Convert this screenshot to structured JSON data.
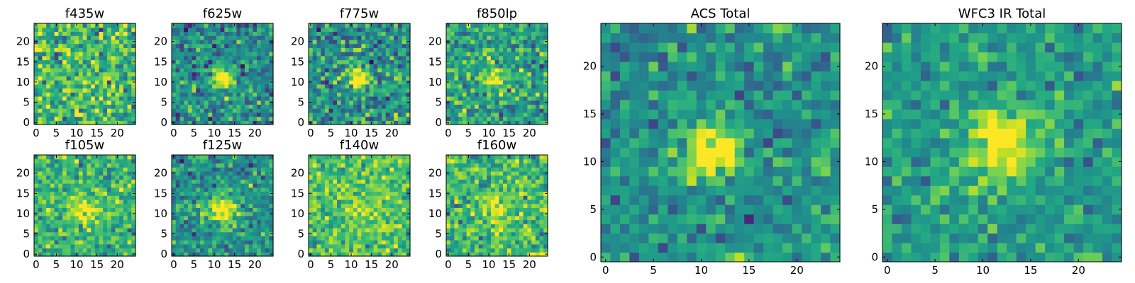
{
  "chart_data": [
    {
      "type": "heatmap",
      "title": "f435w",
      "xticks": [
        "0",
        "5",
        "10",
        "15",
        "20"
      ],
      "yticks": [
        "0",
        "5",
        "10",
        "15",
        "20"
      ],
      "grid": "off",
      "colormap": "viridis",
      "size": 25,
      "peak": 0.1,
      "source_center": [
        12,
        11
      ],
      "source_radius": 2.2,
      "background_mean": 0.68,
      "noise": 0.18,
      "seed": 11
    },
    {
      "type": "heatmap",
      "title": "f625w",
      "xticks": [
        "0",
        "5",
        "10",
        "15",
        "20"
      ],
      "yticks": [
        "0",
        "5",
        "10",
        "15",
        "20"
      ],
      "grid": "off",
      "colormap": "viridis",
      "size": 25,
      "peak": 0.6,
      "source_center": [
        12,
        11
      ],
      "source_radius": 1.9,
      "background_mean": 0.48,
      "noise": 0.15,
      "seed": 23
    },
    {
      "type": "heatmap",
      "title": "f775w",
      "xticks": [
        "0",
        "5",
        "10",
        "15",
        "20"
      ],
      "yticks": [
        "0",
        "5",
        "10",
        "15",
        "20"
      ],
      "grid": "off",
      "colormap": "viridis",
      "size": 25,
      "peak": 0.5,
      "source_center": [
        12,
        11
      ],
      "source_radius": 1.9,
      "background_mean": 0.52,
      "noise": 0.17,
      "seed": 37
    },
    {
      "type": "heatmap",
      "title": "f850lp",
      "xticks": [
        "0",
        "5",
        "10",
        "15",
        "20"
      ],
      "yticks": [
        "0",
        "5",
        "10",
        "15",
        "20"
      ],
      "grid": "off",
      "colormap": "viridis",
      "size": 25,
      "peak": 0.45,
      "source_center": [
        12,
        11
      ],
      "source_radius": 1.9,
      "background_mean": 0.58,
      "noise": 0.16,
      "seed": 41
    },
    {
      "type": "heatmap",
      "title": "f105w",
      "xticks": [
        "0",
        "5",
        "10",
        "15",
        "20"
      ],
      "yticks": [
        "0",
        "5",
        "10",
        "15",
        "20"
      ],
      "grid": "off",
      "colormap": "viridis",
      "size": 25,
      "peak": 0.35,
      "source_center": [
        12,
        11
      ],
      "source_radius": 2.4,
      "background_mean": 0.66,
      "noise": 0.14,
      "seed": 53
    },
    {
      "type": "heatmap",
      "title": "f125w",
      "xticks": [
        "0",
        "5",
        "10",
        "15",
        "20"
      ],
      "yticks": [
        "0",
        "5",
        "10",
        "15",
        "20"
      ],
      "grid": "off",
      "colormap": "viridis",
      "size": 25,
      "peak": 0.55,
      "source_center": [
        12,
        11
      ],
      "source_radius": 2.4,
      "background_mean": 0.5,
      "noise": 0.13,
      "seed": 67
    },
    {
      "type": "heatmap",
      "title": "f140w",
      "xticks": [
        "0",
        "5",
        "10",
        "15",
        "20"
      ],
      "yticks": [
        "0",
        "5",
        "10",
        "15",
        "20"
      ],
      "grid": "off",
      "colormap": "viridis",
      "size": 25,
      "peak": 0.2,
      "source_center": [
        12,
        11
      ],
      "source_radius": 2.4,
      "background_mean": 0.72,
      "noise": 0.13,
      "seed": 79
    },
    {
      "type": "heatmap",
      "title": "f160w",
      "xticks": [
        "0",
        "5",
        "10",
        "15",
        "20"
      ],
      "yticks": [
        "0",
        "5",
        "10",
        "15",
        "20"
      ],
      "grid": "off",
      "colormap": "viridis",
      "size": 25,
      "peak": 0.3,
      "source_center": [
        12,
        11
      ],
      "source_radius": 2.4,
      "background_mean": 0.68,
      "noise": 0.15,
      "seed": 83
    },
    {
      "type": "heatmap",
      "title": "ACS Total",
      "xticks": [
        "0",
        "5",
        "10",
        "15",
        "20"
      ],
      "yticks": [
        "0",
        "5",
        "10",
        "15",
        "20"
      ],
      "grid": "off",
      "colormap": "viridis",
      "size": 25,
      "peak": 0.65,
      "source_center": [
        11,
        11
      ],
      "source_radius": 2.0,
      "background_mean": 0.5,
      "noise": 0.13,
      "seed": 97
    },
    {
      "type": "heatmap",
      "title": "WFC3 IR Total",
      "xticks": [
        "0",
        "5",
        "10",
        "15",
        "20"
      ],
      "yticks": [
        "0",
        "5",
        "10",
        "15",
        "20"
      ],
      "grid": "off",
      "colormap": "viridis",
      "size": 25,
      "peak": 0.55,
      "source_center": [
        12,
        12
      ],
      "source_radius": 2.6,
      "background_mean": 0.55,
      "noise": 0.11,
      "seed": 101
    }
  ]
}
